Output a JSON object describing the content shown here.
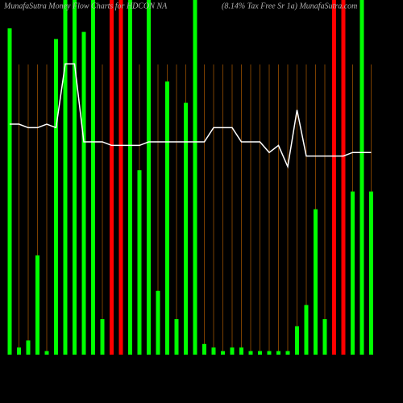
{
  "chart_data": {
    "type": "bar",
    "title": "MunafaSutra  Money Flow  Charts for HDCON NA",
    "subtitle": "(8.14% Tax Free  Sr 1a) MunafaSutra.com",
    "categories": [
      null,
      null,
      null,
      null,
      null,
      null,
      null,
      null,
      null,
      null,
      null,
      null,
      null,
      null,
      null,
      null,
      null,
      null,
      null,
      null,
      null,
      null,
      null,
      null,
      null,
      null,
      null,
      null,
      null,
      null,
      null,
      null,
      null,
      null,
      null,
      null,
      null,
      null,
      null,
      null
    ],
    "bars": {
      "values": [
        92,
        2,
        4,
        28,
        1,
        89,
        100,
        100,
        91,
        100,
        10,
        100,
        100,
        100,
        52,
        100,
        18,
        77,
        10,
        71,
        100,
        3,
        2,
        1,
        2,
        2,
        1,
        1,
        1,
        1,
        1,
        8,
        14,
        41,
        10,
        100,
        100,
        46,
        100,
        46
      ],
      "colors": [
        "#00ff00",
        "#00ff00",
        "#00ff00",
        "#00ff00",
        "#00ff00",
        "#00ff00",
        "#00ff00",
        "#00ff00",
        "#00ff00",
        "#00ff00",
        "#00ff00",
        "#ff0000",
        "#ff0000",
        "#00ff00",
        "#00ff00",
        "#00ff00",
        "#00ff00",
        "#00ff00",
        "#00ff00",
        "#00ff00",
        "#00ff00",
        "#00ff00",
        "#00ff00",
        "#00ff00",
        "#00ff00",
        "#00ff00",
        "#00ff00",
        "#00ff00",
        "#00ff00",
        "#00ff00",
        "#00ff00",
        "#00ff00",
        "#00ff00",
        "#00ff00",
        "#00ff00",
        "#ff0000",
        "#ff0000",
        "#00ff00",
        "#00ff00",
        "#00ff00"
      ]
    },
    "line": {
      "color": "#ffffff",
      "values": [
        65,
        65,
        64,
        64,
        65,
        64,
        82,
        82,
        60,
        60,
        60,
        59,
        59,
        59,
        59,
        60,
        60,
        60,
        60,
        60,
        60,
        60,
        64,
        64,
        64,
        60,
        60,
        60,
        57,
        59,
        53,
        69,
        56,
        56,
        56,
        56,
        56,
        57,
        57,
        57
      ]
    },
    "ylim": [
      0,
      100
    ]
  }
}
